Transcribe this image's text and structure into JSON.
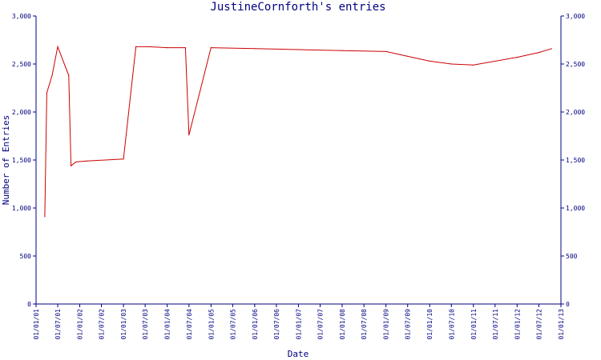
{
  "chart_data": {
    "type": "line",
    "title": "JustineCornforth's entries",
    "xlabel": "Date",
    "ylabel": "Number of Entries",
    "ylim": [
      0,
      3000
    ],
    "yticks": [
      0,
      500,
      1000,
      1500,
      2000,
      2500,
      3000
    ],
    "ytick_labels": [
      "0",
      "500",
      "1,000",
      "1,500",
      "2,000",
      "2,500",
      "3,000"
    ],
    "xlim": [
      "2001-01-01",
      "2013-01-01"
    ],
    "xticks": [
      "2001-01-01",
      "2001-07-01",
      "2002-01-01",
      "2002-07-01",
      "2003-01-01",
      "2003-07-01",
      "2004-01-01",
      "2004-07-01",
      "2005-01-01",
      "2005-07-01",
      "2006-01-01",
      "2006-07-01",
      "2007-01-01",
      "2007-07-01",
      "2008-01-01",
      "2008-07-01",
      "2009-01-01",
      "2009-07-01",
      "2010-01-01",
      "2010-07-01",
      "2011-01-01",
      "2011-07-01",
      "2012-01-01",
      "2012-07-01",
      "2013-01-01"
    ],
    "xtick_labels": [
      "01/01/01",
      "01/07/01",
      "01/01/02",
      "01/07/02",
      "01/01/03",
      "01/07/03",
      "01/01/04",
      "01/07/04",
      "01/01/05",
      "01/07/05",
      "01/01/06",
      "01/07/06",
      "01/01/07",
      "01/07/07",
      "01/01/08",
      "01/07/08",
      "01/01/09",
      "01/07/09",
      "01/01/10",
      "01/07/10",
      "01/01/11",
      "01/07/11",
      "01/01/12",
      "01/07/12",
      "01/01/13"
    ],
    "grid": false,
    "colors": {
      "line": "#cc0000",
      "axis": "#000080",
      "text": "#000080"
    },
    "series": [
      {
        "x": [
          "2001-03-15",
          "2001-04-01",
          "2001-05-15",
          "2001-07-01",
          "2001-10-01",
          "2001-10-20",
          "2001-12-01",
          "2002-03-01",
          "2003-01-01",
          "2003-04-15",
          "2003-08-01",
          "2004-01-01",
          "2004-06-01",
          "2004-07-01",
          "2005-01-01",
          "2006-01-01",
          "2007-01-01",
          "2008-01-01",
          "2009-01-01",
          "2009-07-01",
          "2010-01-01",
          "2010-07-01",
          "2011-01-01",
          "2012-01-01",
          "2012-07-01",
          "2012-10-15"
        ],
        "values": [
          910,
          2200,
          2380,
          2680,
          2380,
          1440,
          1480,
          1490,
          1510,
          2680,
          2680,
          2670,
          2670,
          1760,
          2670,
          2660,
          2650,
          2640,
          2630,
          2580,
          2530,
          2500,
          2490,
          2570,
          2620,
          2660
        ]
      }
    ]
  }
}
